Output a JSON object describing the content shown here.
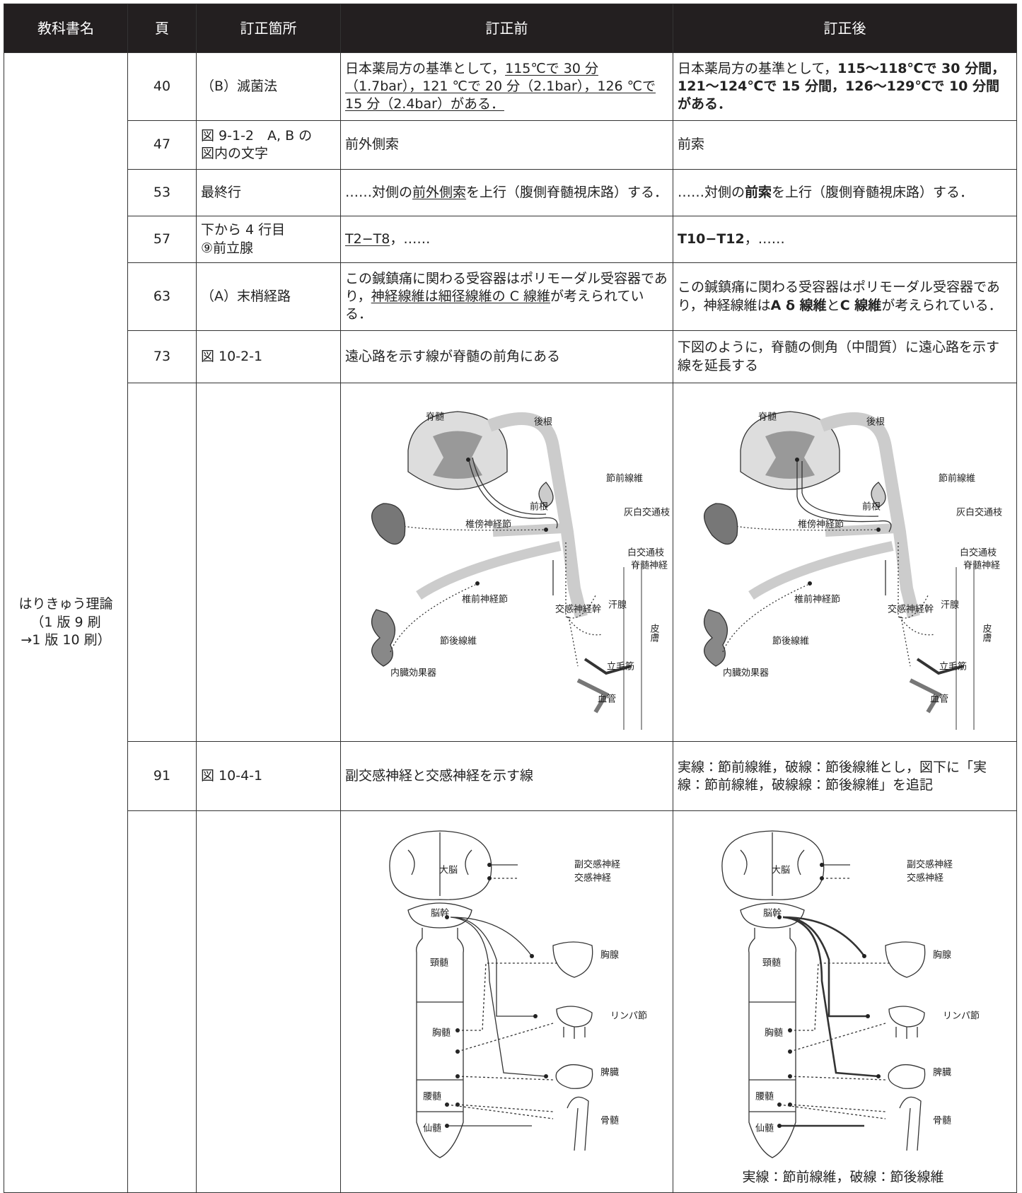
{
  "header": {
    "columns": [
      "教科書名",
      "頁",
      "訂正箇所",
      "訂正前",
      "訂正後"
    ]
  },
  "book": [
    "はりきゅう理論",
    "（1 版 9 刷",
    "→1 版 10 刷）"
  ],
  "rows": [
    {
      "page": 40,
      "location": [
        "（B）滅菌法"
      ],
      "before": [
        {
          "text": "日本薬局方の基準として，"
        },
        {
          "text": "115℃で 30 分（1.7bar），121 ℃で 20 分（2.1bar），126 ℃で 15 分（2.4bar）がある．",
          "style": "u"
        }
      ],
      "after": [
        {
          "text": "日本薬局方の基準として，"
        },
        {
          "text": "115〜118℃で 30 分間，121〜124℃で 15 分間，126〜129℃で 10 分間がある．",
          "style": "b"
        }
      ]
    },
    {
      "page": 47,
      "location": [
        "図 9-1-2　A, B の",
        "図内の文字"
      ],
      "before": [
        {
          "text": "前外側索"
        }
      ],
      "after": [
        {
          "text": "前索"
        }
      ]
    },
    {
      "page": 53,
      "location": [
        "最終行"
      ],
      "before": [
        {
          "text": "……対側の"
        },
        {
          "text": "前外側索",
          "style": "u"
        },
        {
          "text": "を上行（腹側脊髄視床路）する．"
        }
      ],
      "after": [
        {
          "text": "……対側の"
        },
        {
          "text": "前索",
          "style": "b"
        },
        {
          "text": "を上行（腹側脊髄視床路）する．"
        }
      ]
    },
    {
      "page": 57,
      "location": [
        "下から 4 行目",
        "⑨前立腺"
      ],
      "before": [
        {
          "text": "T2−T8",
          "style": "u"
        },
        {
          "text": "，……"
        }
      ],
      "after": [
        {
          "text": "T10−T12",
          "style": "b"
        },
        {
          "text": "，……"
        }
      ]
    },
    {
      "page": 63,
      "location": [
        "（A）末梢経路"
      ],
      "before": [
        {
          "text": "この鍼鎮痛に関わる受容器はポリモーダル受容器であり，"
        },
        {
          "text": "神経線維は細径線維の C 線維",
          "style": "u"
        },
        {
          "text": "が考えられている．"
        }
      ],
      "after": [
        {
          "text": "この鍼鎮痛に関わる受容器はポリモーダル受容器であり，神経線維は"
        },
        {
          "text": "A δ 線維",
          "style": "b"
        },
        {
          "text": "と"
        },
        {
          "text": "C 線維",
          "style": "b"
        },
        {
          "text": "が考えられている．"
        }
      ]
    },
    {
      "page": 73,
      "location": [
        "図 10-2-1"
      ],
      "before": [
        {
          "text": "遠心路を示す線が脊髄の前角にある"
        }
      ],
      "after": [
        {
          "text": "下図のように，脊髄の側角（中間質）に遠心路を示す線を延長する"
        }
      ]
    },
    {
      "page": 91,
      "location": [
        "図 10-4-1"
      ],
      "before": [
        {
          "text": "副交感神経と交感神経を示す線"
        }
      ],
      "after": [
        {
          "text": "実線：節前線維，破線：節後線維とし，図下に「実線：節前線維，破線線：節後線維」を追記"
        }
      ]
    }
  ],
  "figure1": {
    "labels": [
      "脊髄",
      "後根",
      "節前線維",
      "前根",
      "灰白交通枝",
      "椎傍神経節",
      "白交通枝",
      "脊髄神経",
      "椎前神経節",
      "交感神経幹",
      "汗腺",
      "皮膚",
      "節後線維",
      "立毛筋",
      "内臓効果器",
      "血管"
    ]
  },
  "figure2": {
    "labels": [
      "大脳",
      "副交感神経",
      "交感神経",
      "脳幹",
      "胸腺",
      "頸髄",
      "リンパ節",
      "胸髄",
      "脾臓",
      "腰髄",
      "骨髄",
      "仙髄"
    ],
    "caption": "実線：節前線維，破線：節後線維"
  }
}
